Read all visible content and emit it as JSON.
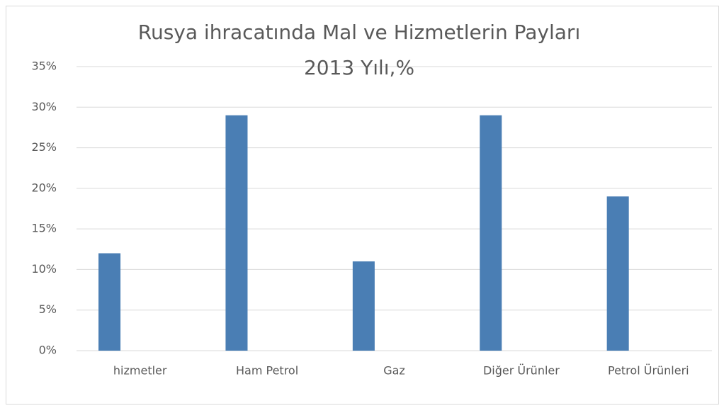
{
  "chart_data": {
    "type": "bar",
    "title": "Rusya ihracatında Mal ve Hizmetlerin Payları",
    "subtitle": "2013 Yılı,%",
    "categories": [
      "hizmetler",
      "Ham Petrol",
      "Gaz",
      "Diğer Ürünler",
      "Petrol Ürünleri"
    ],
    "values": [
      12,
      29,
      11,
      29,
      19
    ],
    "color": "#4a7eb4",
    "ylim": [
      0,
      35
    ],
    "yticks": [
      {
        "value": 0,
        "label": "0%"
      },
      {
        "value": 5,
        "label": "5%"
      },
      {
        "value": 10,
        "label": "10%"
      },
      {
        "value": 15,
        "label": "15%"
      },
      {
        "value": 20,
        "label": "20%"
      },
      {
        "value": 25,
        "label": "25%"
      },
      {
        "value": 30,
        "label": "30%"
      },
      {
        "value": 35,
        "label": "35%"
      }
    ],
    "grid": true
  }
}
